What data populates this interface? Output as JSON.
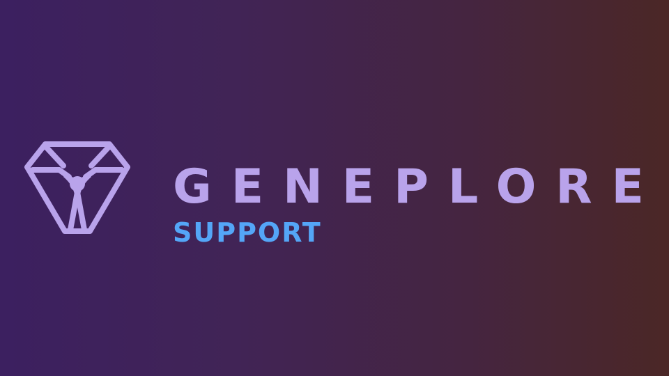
{
  "brand": {
    "name": "GENEPLORE",
    "tagline": "SUPPORT",
    "logo_icon": "geneplore-gem-icon"
  },
  "colors": {
    "background_left": "#3c2060",
    "background_right": "#4b2726",
    "logo": "#b9a3eb",
    "tagline": "#54a6f7"
  }
}
